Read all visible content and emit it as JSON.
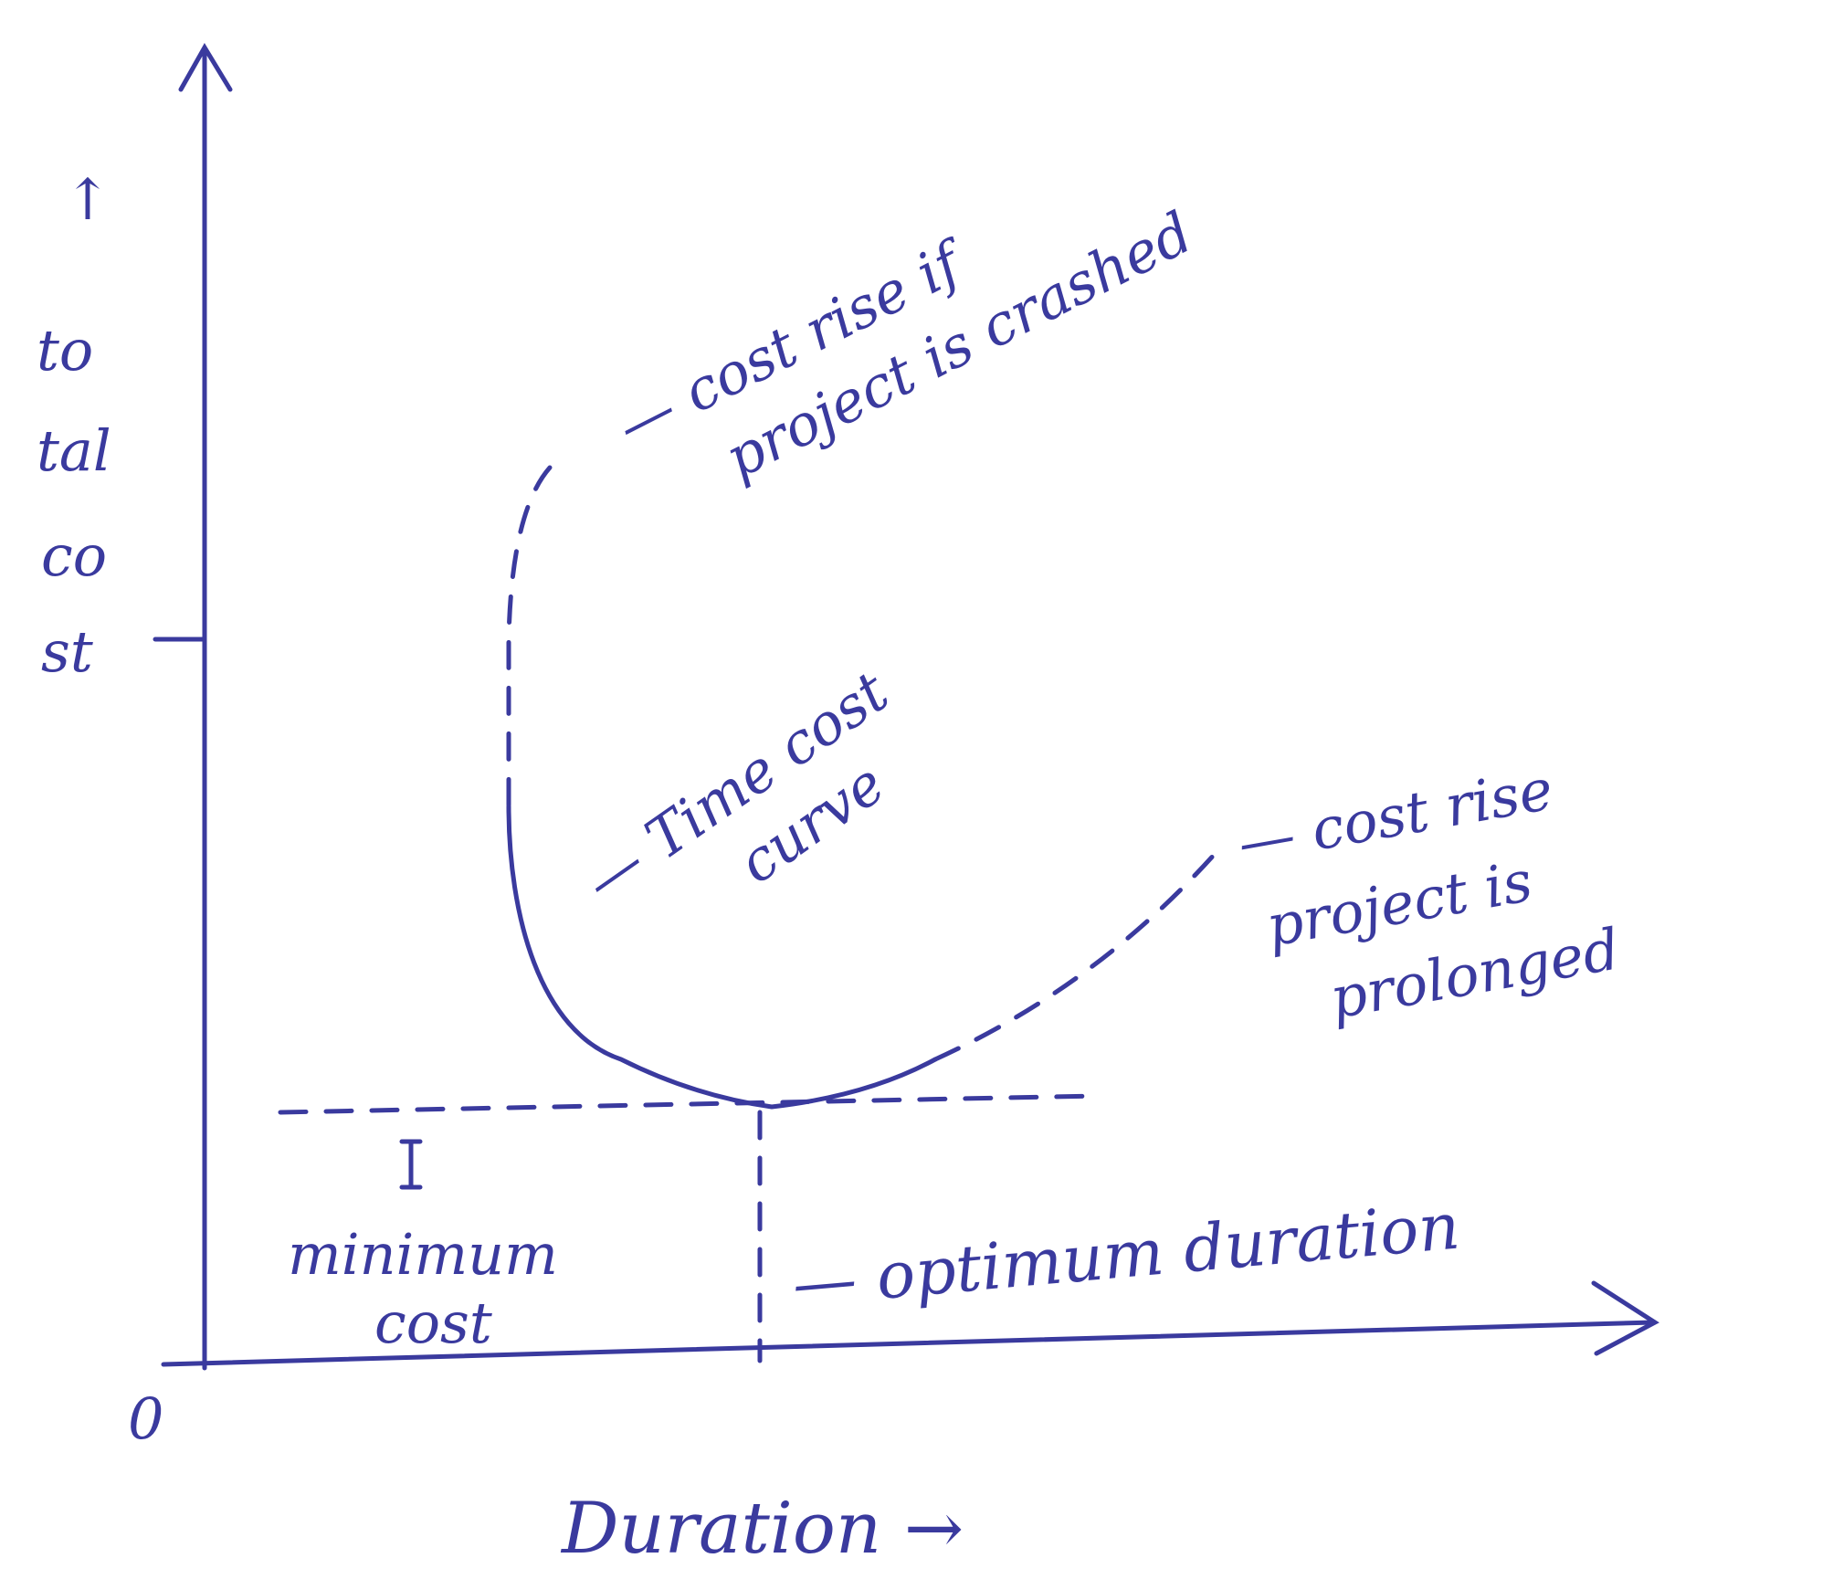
{
  "axes": {
    "y_arrow": "↑",
    "y_label": [
      "to",
      "tal",
      "co",
      "st"
    ],
    "origin": "0",
    "x_label": "Duration →"
  },
  "annotations": {
    "crashed": [
      "— cost rise if",
      "project is crashed"
    ],
    "curve": [
      "— Time cost",
      "curve"
    ],
    "prolonged": [
      "— cost rise",
      "project is",
      "prolonged"
    ],
    "minimum": [
      "minimum",
      "cost"
    ],
    "optimum": "— optimum duration"
  }
}
